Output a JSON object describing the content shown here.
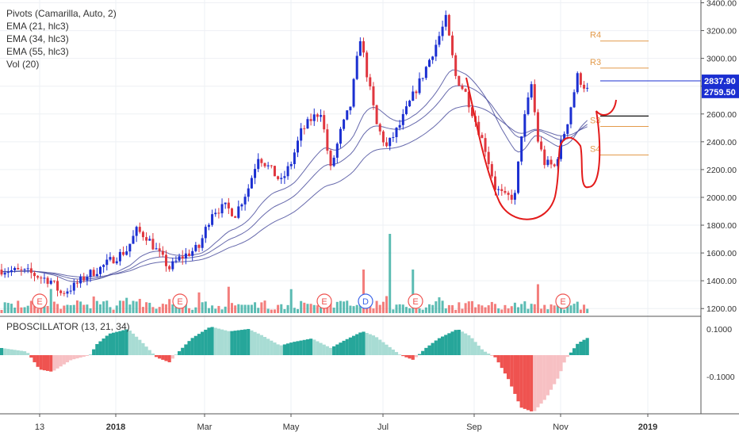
{
  "legend": {
    "items": [
      "Pivots (Camarilla, Auto, 2)",
      "EMA (21, hlc3)",
      "EMA (34, hlc3)",
      "EMA (55, hlc3)",
      "Vol (20)"
    ]
  },
  "oscillator": {
    "title": "PBOSCILLATOR (13, 21, 34)",
    "ticks": [
      "0.1000",
      "-0.1000"
    ]
  },
  "colors": {
    "up": "#1b2fd1",
    "down": "#e0373f",
    "vol_up": "#26a69a",
    "vol_down": "#ef5350",
    "ema": "#4b4f9e",
    "pivot": "#e39a4a",
    "drawing": "#e31b1b",
    "osc_dark_green": "#26a69a",
    "osc_light_green": "#a8dcd4",
    "osc_dark_red": "#ef5350",
    "osc_light_red": "#f7c0c3",
    "price_line": "#1b2fd1"
  },
  "chart_data": {
    "type": "candlestick",
    "x_labels": [
      "13",
      "2018",
      "Mar",
      "May",
      "Jul",
      "Sep",
      "Nov",
      "2019"
    ],
    "y_ticks": [
      "3400.00",
      "3200.00",
      "3000.00",
      "2800.00",
      "2600.00",
      "2400.00",
      "2200.00",
      "2000.00",
      "1800.00",
      "1600.00",
      "1400.00",
      "1200.00"
    ],
    "ylim": [
      1150,
      3420
    ],
    "price_labels": [
      "2837.90",
      "2759.50"
    ],
    "price_label_values": [
      2837.9,
      2759.5
    ],
    "pivot_labels": [
      "R4",
      "R3",
      "S3",
      "S4"
    ],
    "pivot_levels": [
      3125,
      2930,
      2510,
      2305
    ],
    "pivot_other_levels": [
      2585
    ],
    "events": [
      "E",
      "E",
      "E",
      "D",
      "E",
      "E"
    ],
    "price_path": [
      [
        0,
        1480
      ],
      [
        8,
        1460
      ],
      [
        15,
        1400
      ],
      [
        18,
        1310
      ],
      [
        22,
        1360
      ],
      [
        26,
        1440
      ],
      [
        30,
        1490
      ],
      [
        34,
        1560
      ],
      [
        38,
        1620
      ],
      [
        41,
        1760
      ],
      [
        44,
        1720
      ],
      [
        47,
        1620
      ],
      [
        51,
        1490
      ],
      [
        54,
        1560
      ],
      [
        57,
        1600
      ],
      [
        60,
        1640
      ],
      [
        64,
        1900
      ],
      [
        68,
        1930
      ],
      [
        71,
        1880
      ],
      [
        75,
        2070
      ],
      [
        78,
        2300
      ],
      [
        81,
        2220
      ],
      [
        85,
        2110
      ],
      [
        88,
        2250
      ],
      [
        91,
        2470
      ],
      [
        94,
        2560
      ],
      [
        97,
        2620
      ],
      [
        100,
        2200
      ],
      [
        103,
        2470
      ],
      [
        106,
        2660
      ],
      [
        109,
        3150
      ],
      [
        111,
        2890
      ],
      [
        114,
        2520
      ],
      [
        117,
        2360
      ],
      [
        121,
        2520
      ],
      [
        124,
        2680
      ],
      [
        128,
        2880
      ],
      [
        132,
        3100
      ],
      [
        135,
        3280
      ],
      [
        138,
        2870
      ],
      [
        141,
        2750
      ],
      [
        144,
        2550
      ],
      [
        147,
        2350
      ],
      [
        150,
        2070
      ],
      [
        153,
        2000
      ],
      [
        156,
        2010
      ],
      [
        158,
        2460
      ],
      [
        161,
        2810
      ],
      [
        163,
        2410
      ],
      [
        165,
        2250
      ],
      [
        168,
        2220
      ],
      [
        172,
        2550
      ],
      [
        175,
        2870
      ],
      [
        178,
        2770
      ]
    ]
  }
}
